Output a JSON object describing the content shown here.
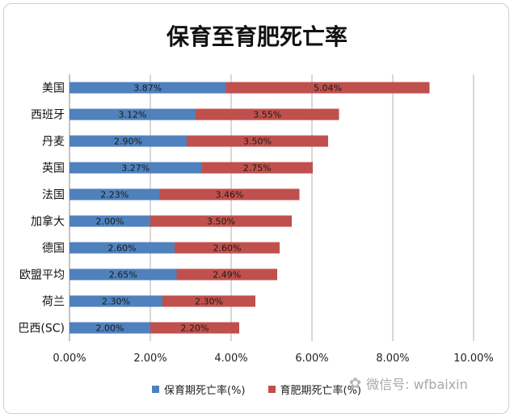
{
  "chart_data": {
    "type": "bar",
    "orientation": "horizontal",
    "stacked": true,
    "title": "保育至育肥死亡率",
    "categories": [
      "美国",
      "西班牙",
      "丹麦",
      "英国",
      "法国",
      "加拿大",
      "德国",
      "欧盟平均",
      "荷兰",
      "巴西(SC)"
    ],
    "series": [
      {
        "name": "保育期死亡率(%)",
        "color": "#4f81bd",
        "values": [
          3.87,
          3.12,
          2.9,
          3.27,
          2.23,
          2.0,
          2.6,
          2.65,
          2.3,
          2.0
        ],
        "labels": [
          "3.87%",
          "3.12%",
          "2.90%",
          "3.27%",
          "2.23%",
          "2.00%",
          "2.60%",
          "2.65%",
          "2.30%",
          "2.00%"
        ]
      },
      {
        "name": "育肥期死亡率(%)",
        "color": "#c0504d",
        "values": [
          5.04,
          3.55,
          3.5,
          2.75,
          3.46,
          3.5,
          2.6,
          2.49,
          2.3,
          2.2
        ],
        "labels": [
          "5.04%",
          "3.55%",
          "3.50%",
          "2.75%",
          "3.46%",
          "3.50%",
          "2.60%",
          "2.49%",
          "2.30%",
          "2.20%"
        ]
      }
    ],
    "xlim": [
      0,
      10
    ],
    "xticks": [
      "0.00%",
      "2.00%",
      "4.00%",
      "6.00%",
      "8.00%",
      "10.00%"
    ],
    "grid": true,
    "legend_position": "bottom"
  },
  "legend": {
    "item1": "保育期死亡率(%)",
    "item2": "育肥期死亡率(%)"
  },
  "watermark": {
    "icon": "wechat-icon",
    "text": "微信号: wfbaixin"
  }
}
